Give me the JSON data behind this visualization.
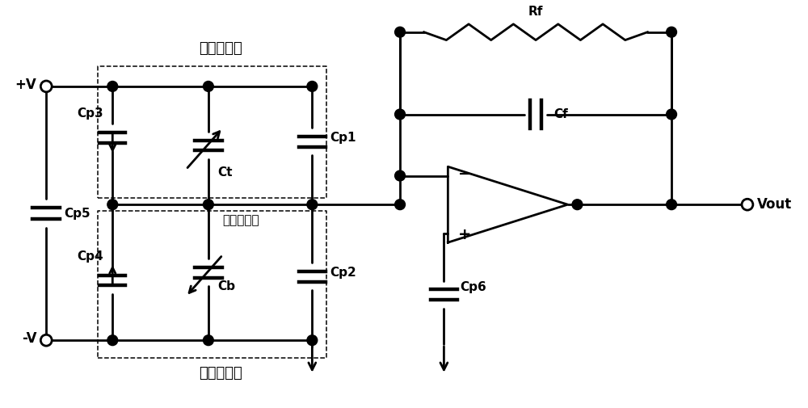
{
  "bg_color": "#ffffff",
  "line_color": "#000000",
  "line_width": 2.0,
  "fig_width": 10.0,
  "fig_height": 5.05,
  "labels": {
    "plus_v": "+V",
    "minus_v": "-V",
    "cp3": "Cp3",
    "cp4": "Cp4",
    "cp5": "Cp5",
    "ct": "Ct",
    "cb": "Cb",
    "cp1": "Cp1",
    "cp2": "Cp2",
    "cp6": "Cp6",
    "rf": "Rf",
    "cf": "Cf",
    "vout": "Vout",
    "upper_plate": "上固定极板",
    "lower_plate": "下固定极板",
    "movable": "可动质量快"
  }
}
